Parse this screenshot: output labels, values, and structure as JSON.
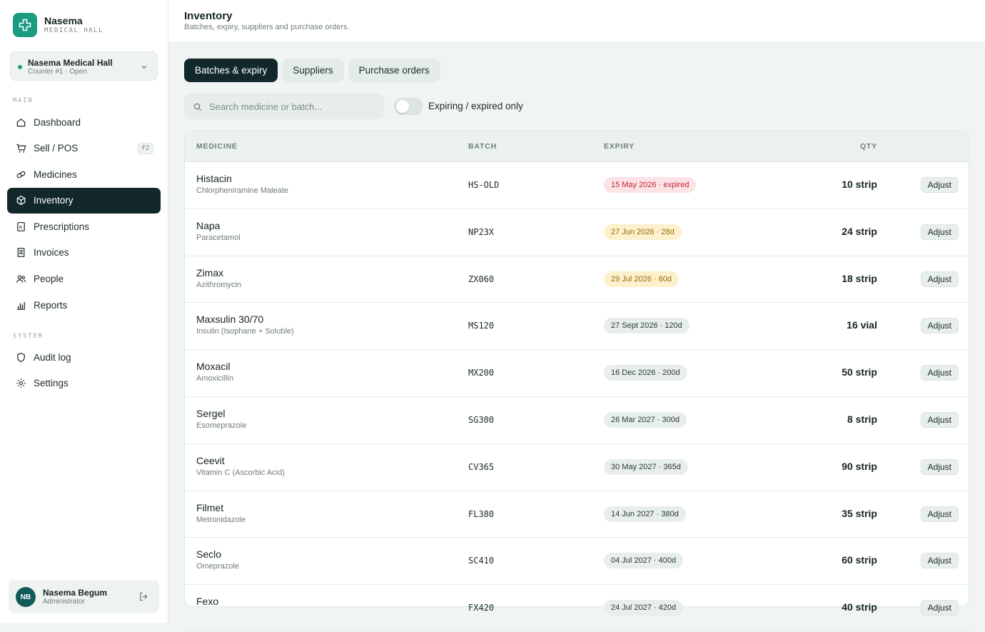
{
  "brand": {
    "name": "Nasema",
    "sub": "MEDICAL HALL",
    "accent": "#1a9c82"
  },
  "store": {
    "name": "Nasema Medical Hall",
    "status": "Counter #1 · Open"
  },
  "sidebar": {
    "main_label": "MAIN",
    "system_label": "SYSTEM",
    "main_items": [
      {
        "label": "Dashboard",
        "icon": "home-icon"
      },
      {
        "label": "Sell / POS",
        "icon": "cart-icon",
        "shortcut": "F2"
      },
      {
        "label": "Medicines",
        "icon": "pill-icon"
      },
      {
        "label": "Inventory",
        "icon": "box-icon",
        "active": true
      },
      {
        "label": "Prescriptions",
        "icon": "rx-icon"
      },
      {
        "label": "Invoices",
        "icon": "receipt-icon"
      },
      {
        "label": "People",
        "icon": "users-icon"
      },
      {
        "label": "Reports",
        "icon": "bar-chart-icon"
      }
    ],
    "system_items": [
      {
        "label": "Audit log",
        "icon": "shield-icon"
      },
      {
        "label": "Settings",
        "icon": "gear-icon"
      }
    ]
  },
  "user": {
    "initials": "NB",
    "name": "Nasema Begum",
    "role": "Administrator"
  },
  "header": {
    "title": "Inventory",
    "subtitle": "Batches, expiry, suppliers and purchase orders."
  },
  "tabs": [
    {
      "label": "Batches & expiry",
      "active": true
    },
    {
      "label": "Suppliers"
    },
    {
      "label": "Purchase orders"
    }
  ],
  "filters": {
    "search_placeholder": "Search medicine or batch...",
    "toggle_label": "Expiring / expired only"
  },
  "table": {
    "columns": {
      "medicine": "MEDICINE",
      "batch": "BATCH",
      "expiry": "EXPIRY",
      "qty": "QTY"
    },
    "adjust_label": "Adjust",
    "rows": [
      {
        "name": "Histacin",
        "generic": "Chlorpheniramine Maleate",
        "batch": "HS-OLD",
        "expiry": "15 May 2026 · expired",
        "status": "expired",
        "qty": "10 strip"
      },
      {
        "name": "Napa",
        "generic": "Paracetamol",
        "batch": "NP23X",
        "expiry": "27 Jun 2026 · 28d",
        "status": "soon",
        "qty": "24 strip"
      },
      {
        "name": "Zimax",
        "generic": "Azithromycin",
        "batch": "ZX060",
        "expiry": "29 Jul 2026 · 60d",
        "status": "soon",
        "qty": "18 strip"
      },
      {
        "name": "Maxsulin 30/70",
        "generic": "Insulin (Isophane + Soluble)",
        "batch": "MS120",
        "expiry": "27 Sept 2026 · 120d",
        "status": "ok",
        "qty": "16 vial"
      },
      {
        "name": "Moxacil",
        "generic": "Amoxicillin",
        "batch": "MX200",
        "expiry": "16 Dec 2026 · 200d",
        "status": "ok",
        "qty": "50 strip"
      },
      {
        "name": "Sergel",
        "generic": "Esomeprazole",
        "batch": "SG300",
        "expiry": "26 Mar 2027 · 300d",
        "status": "ok",
        "qty": "8 strip"
      },
      {
        "name": "Ceevit",
        "generic": "Vitamin C (Ascorbic Acid)",
        "batch": "CV365",
        "expiry": "30 May 2027 · 365d",
        "status": "ok",
        "qty": "90 strip"
      },
      {
        "name": "Filmet",
        "generic": "Metronidazole",
        "batch": "FL380",
        "expiry": "14 Jun 2027 · 380d",
        "status": "ok",
        "qty": "35 strip"
      },
      {
        "name": "Seclo",
        "generic": "Omeprazole",
        "batch": "SC410",
        "expiry": "04 Jul 2027 · 400d",
        "status": "ok",
        "qty": "60 strip"
      },
      {
        "name": "Fexo",
        "generic": "",
        "batch": "FX420",
        "expiry": "24 Jul 2027 · 420d",
        "status": "ok",
        "qty": "40 strip"
      }
    ]
  }
}
